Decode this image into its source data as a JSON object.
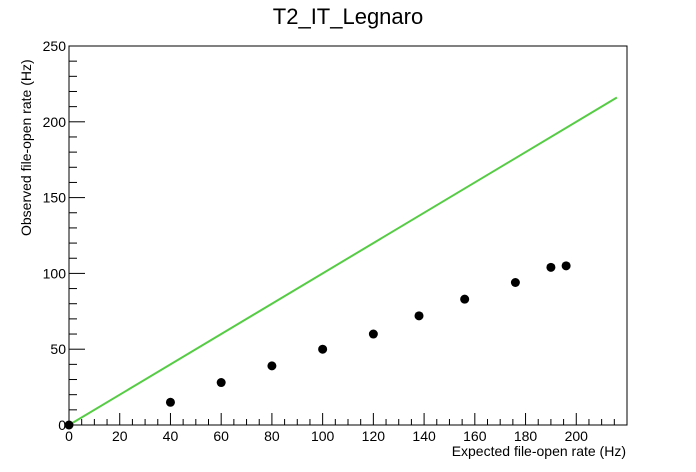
{
  "chart_data": {
    "type": "scatter",
    "title": "T2_IT_Legnaro",
    "xlabel": "Expected file-open rate (Hz)",
    "ylabel": "Observed file-open rate (Hz)",
    "xlim": [
      0,
      220
    ],
    "ylim": [
      0,
      250
    ],
    "x_ticks": [
      0,
      20,
      40,
      60,
      80,
      100,
      120,
      140,
      160,
      180,
      200
    ],
    "y_ticks": [
      0,
      50,
      100,
      150,
      200,
      250
    ],
    "grid": false,
    "series": [
      {
        "type": "scatter",
        "color": "#000000",
        "points": [
          {
            "x": 0,
            "y": 0
          },
          {
            "x": 40,
            "y": 15
          },
          {
            "x": 60,
            "y": 28
          },
          {
            "x": 80,
            "y": 39
          },
          {
            "x": 100,
            "y": 50
          },
          {
            "x": 120,
            "y": 60
          },
          {
            "x": 138,
            "y": 72
          },
          {
            "x": 156,
            "y": 83
          },
          {
            "x": 176,
            "y": 94
          },
          {
            "x": 190,
            "y": 104
          },
          {
            "x": 196,
            "y": 105
          }
        ]
      },
      {
        "type": "line",
        "color": "#55cc44",
        "points": [
          {
            "x": 0,
            "y": 0
          },
          {
            "x": 216,
            "y": 216
          }
        ]
      }
    ]
  }
}
